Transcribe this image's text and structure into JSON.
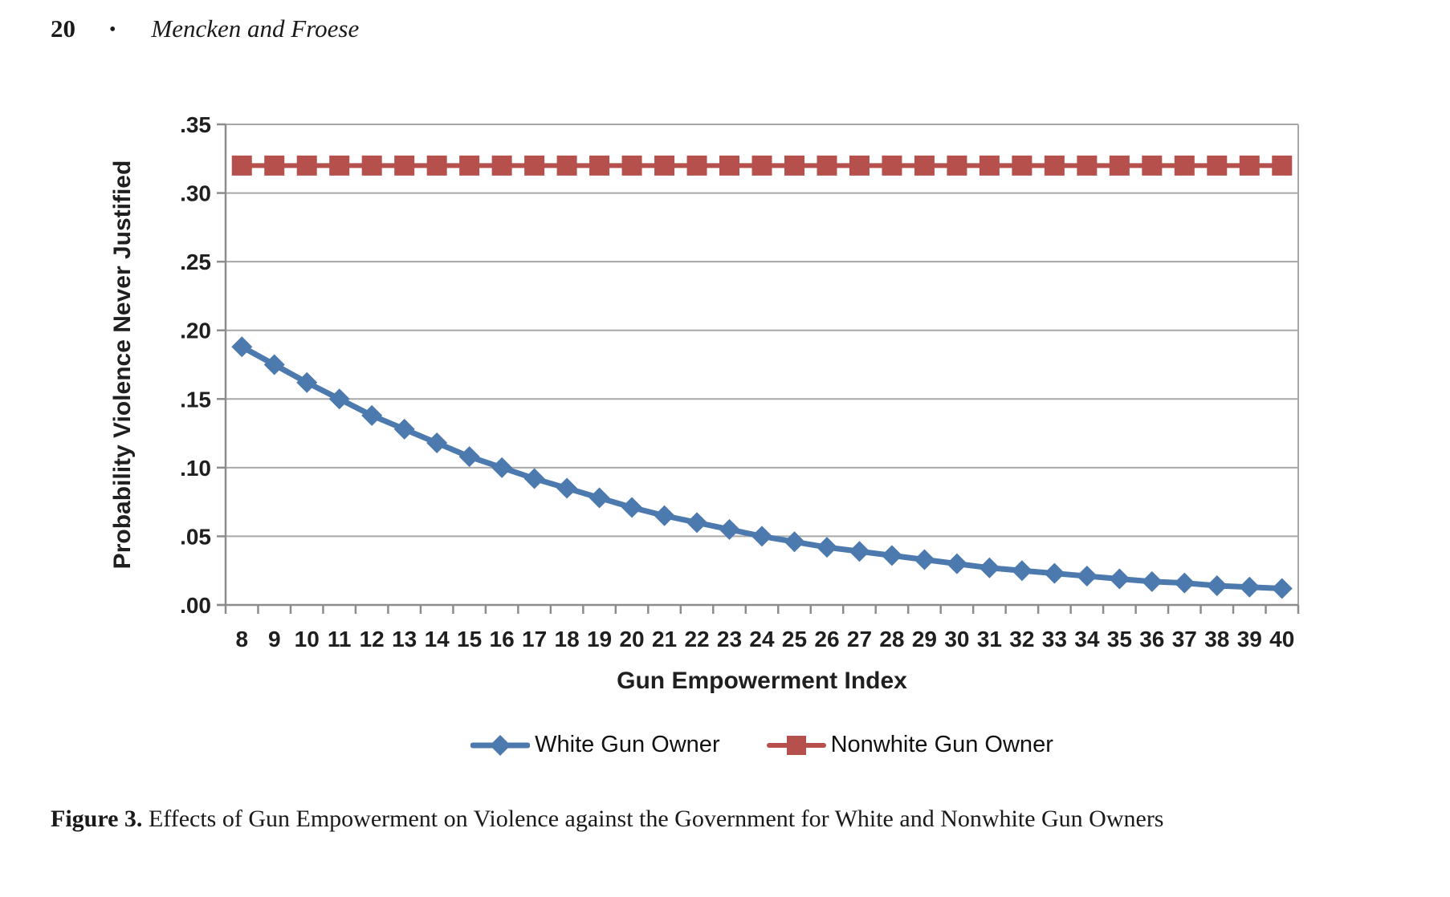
{
  "header": {
    "page_number": "20",
    "separator": "•",
    "running_title": "Mencken and Froese"
  },
  "chart_data": {
    "type": "line",
    "xlabel": "Gun Empowerment Index",
    "ylabel": "Probability Violence Never Justified",
    "x": [
      8,
      9,
      10,
      11,
      12,
      13,
      14,
      15,
      16,
      17,
      18,
      19,
      20,
      21,
      22,
      23,
      24,
      25,
      26,
      27,
      28,
      29,
      30,
      31,
      32,
      33,
      34,
      35,
      36,
      37,
      38,
      39,
      40
    ],
    "series": [
      {
        "name": "White Gun Owner",
        "marker": "diamond",
        "color": "#4c79ae",
        "values": [
          0.188,
          0.175,
          0.162,
          0.15,
          0.138,
          0.128,
          0.118,
          0.108,
          0.1,
          0.092,
          0.085,
          0.078,
          0.071,
          0.065,
          0.06,
          0.055,
          0.05,
          0.046,
          0.042,
          0.039,
          0.036,
          0.033,
          0.03,
          0.027,
          0.025,
          0.023,
          0.021,
          0.019,
          0.017,
          0.016,
          0.014,
          0.013,
          0.012
        ]
      },
      {
        "name": "Nonwhite Gun Owner",
        "marker": "square",
        "color": "#b5504d",
        "values": [
          0.32,
          0.32,
          0.32,
          0.32,
          0.32,
          0.32,
          0.32,
          0.32,
          0.32,
          0.32,
          0.32,
          0.32,
          0.32,
          0.32,
          0.32,
          0.32,
          0.32,
          0.32,
          0.32,
          0.32,
          0.32,
          0.32,
          0.32,
          0.32,
          0.32,
          0.32,
          0.32,
          0.32,
          0.32,
          0.32,
          0.32,
          0.32,
          0.32
        ]
      }
    ],
    "y_ticks": {
      "values": [
        0,
        0.05,
        0.1,
        0.15,
        0.2,
        0.25,
        0.3,
        0.35
      ],
      "labels": [
        ".00",
        ".05",
        ".10",
        ".15",
        ".20",
        ".25",
        ".30",
        ".35"
      ]
    },
    "ylim": [
      0,
      0.35
    ],
    "grid": "horizontal",
    "legend_position": "bottom",
    "colors": {
      "gridline": "#a8a8a8",
      "axis": "#8c8c8c",
      "text": "#1f1f1f"
    }
  },
  "caption": {
    "label": "Figure 3.",
    "text": "Effects of Gun Empowerment on Violence against the Government for White and Nonwhite Gun Owners"
  }
}
